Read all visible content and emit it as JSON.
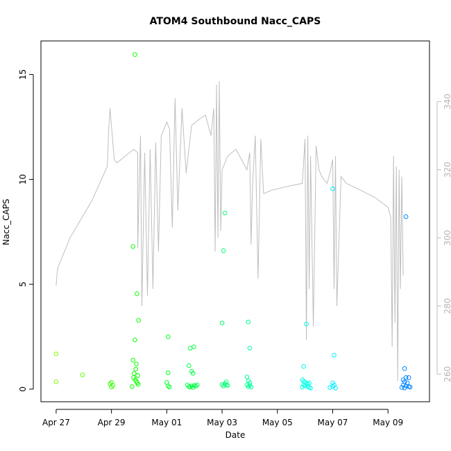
{
  "chart_data": {
    "type": "scatter",
    "title": "ATOM4 Southbound Nacc_CAPS",
    "xlabel": "Date",
    "ylabel": "Nacc_CAPS",
    "x_unit": "days since Apr 27",
    "xlim": [
      -0.55,
      13.5
    ],
    "ylim": [
      -0.6,
      16.6
    ],
    "x_ticks": [
      {
        "value": 0,
        "label": "Apr 27"
      },
      {
        "value": 2,
        "label": "Apr 29"
      },
      {
        "value": 4,
        "label": "May 01"
      },
      {
        "value": 6,
        "label": "May 03"
      },
      {
        "value": 8,
        "label": "May 05"
      },
      {
        "value": 10,
        "label": "May 07"
      },
      {
        "value": 12,
        "label": "May 09"
      }
    ],
    "y_ticks": [
      0,
      5,
      10,
      15
    ],
    "right_axis": {
      "ylim": [
        251.9,
        357.8
      ],
      "ticks": [
        260,
        280,
        300,
        320,
        340
      ],
      "line_color": "#bebebe",
      "line_points": [
        [
          0.0,
          286
        ],
        [
          0.05,
          291
        ],
        [
          0.5,
          300
        ],
        [
          1.3,
          311
        ],
        [
          1.85,
          321
        ],
        [
          1.9,
          332
        ],
        [
          1.95,
          338
        ],
        [
          2.1,
          323
        ],
        [
          2.2,
          322
        ],
        [
          2.5,
          324
        ],
        [
          2.8,
          326
        ],
        [
          2.95,
          325
        ],
        [
          2.95,
          297
        ],
        [
          3.05,
          330
        ],
        [
          3.1,
          280
        ],
        [
          3.2,
          325
        ],
        [
          3.3,
          283
        ],
        [
          3.4,
          326
        ],
        [
          3.5,
          285
        ],
        [
          3.6,
          328
        ],
        [
          3.7,
          296
        ],
        [
          3.8,
          330
        ],
        [
          4.0,
          334
        ],
        [
          4.1,
          332
        ],
        [
          4.2,
          303
        ],
        [
          4.3,
          341
        ],
        [
          4.4,
          308
        ],
        [
          4.55,
          338
        ],
        [
          4.7,
          319
        ],
        [
          4.9,
          333
        ],
        [
          5.2,
          335
        ],
        [
          5.4,
          336
        ],
        [
          5.6,
          330
        ],
        [
          5.7,
          338
        ],
        [
          5.75,
          296
        ],
        [
          5.8,
          345
        ],
        [
          5.85,
          300
        ],
        [
          5.9,
          346
        ],
        [
          5.95,
          302
        ],
        [
          6.0,
          320
        ],
        [
          6.1,
          322
        ],
        [
          6.2,
          324
        ],
        [
          6.5,
          326
        ],
        [
          6.9,
          320
        ],
        [
          7.0,
          325
        ],
        [
          7.05,
          298
        ],
        [
          7.1,
          315
        ],
        [
          7.2,
          330
        ],
        [
          7.3,
          288
        ],
        [
          7.4,
          329
        ],
        [
          7.5,
          313
        ],
        [
          7.8,
          314
        ],
        [
          8.3,
          315
        ],
        [
          8.9,
          316
        ],
        [
          9.0,
          329
        ],
        [
          9.05,
          270
        ],
        [
          9.1,
          330
        ],
        [
          9.15,
          285
        ],
        [
          9.2,
          324
        ],
        [
          9.3,
          274
        ],
        [
          9.4,
          327
        ],
        [
          9.5,
          320
        ],
        [
          9.6,
          318
        ],
        [
          9.7,
          317
        ],
        [
          9.8,
          316
        ],
        [
          9.9,
          319
        ],
        [
          10.0,
          323
        ],
        [
          10.05,
          285
        ],
        [
          10.1,
          324
        ],
        [
          10.15,
          280
        ],
        [
          10.3,
          318
        ],
        [
          10.5,
          316
        ],
        [
          11.0,
          314
        ],
        [
          11.5,
          312
        ],
        [
          12.0,
          309
        ],
        [
          12.1,
          306
        ],
        [
          12.15,
          268
        ],
        [
          12.2,
          324
        ],
        [
          12.25,
          275
        ],
        [
          12.3,
          321
        ],
        [
          12.35,
          258
        ],
        [
          12.4,
          320
        ],
        [
          12.45,
          285
        ],
        [
          12.5,
          318
        ],
        [
          12.55,
          289
        ]
      ]
    },
    "series": [
      {
        "name": "Nacc_CAPS",
        "marker": "open-circle",
        "color_scale": "rainbow by date (green to blue)",
        "points": [
          [
            0.0,
            1.68
          ],
          [
            0.0,
            0.35
          ],
          [
            0.95,
            0.68
          ],
          [
            1.95,
            0.25
          ],
          [
            2.0,
            0.32
          ],
          [
            2.05,
            0.18
          ],
          [
            2.0,
            0.1
          ],
          [
            2.85,
            15.95
          ],
          [
            2.78,
            6.8
          ],
          [
            2.92,
            4.55
          ],
          [
            2.98,
            3.28
          ],
          [
            2.85,
            2.35
          ],
          [
            2.78,
            1.38
          ],
          [
            2.9,
            1.2
          ],
          [
            2.88,
            0.95
          ],
          [
            2.82,
            0.75
          ],
          [
            2.95,
            0.65
          ],
          [
            2.8,
            0.55
          ],
          [
            2.86,
            0.45
          ],
          [
            2.9,
            0.38
          ],
          [
            2.93,
            0.3
          ],
          [
            2.97,
            0.22
          ],
          [
            2.75,
            0.12
          ],
          [
            4.05,
            2.5
          ],
          [
            4.05,
            0.78
          ],
          [
            4.0,
            0.32
          ],
          [
            4.05,
            0.15
          ],
          [
            4.1,
            0.1
          ],
          [
            4.8,
            1.12
          ],
          [
            4.85,
            1.95
          ],
          [
            4.98,
            2.02
          ],
          [
            4.9,
            0.85
          ],
          [
            4.95,
            0.75
          ],
          [
            4.75,
            0.2
          ],
          [
            4.8,
            0.12
          ],
          [
            4.85,
            0.1
          ],
          [
            4.9,
            0.16
          ],
          [
            4.95,
            0.08
          ],
          [
            5.0,
            0.18
          ],
          [
            5.05,
            0.14
          ],
          [
            5.1,
            0.2
          ],
          [
            6.0,
            3.15
          ],
          [
            6.1,
            8.4
          ],
          [
            6.05,
            6.6
          ],
          [
            6.15,
            0.35
          ],
          [
            6.0,
            0.22
          ],
          [
            6.05,
            0.15
          ],
          [
            6.1,
            0.25
          ],
          [
            6.15,
            0.2
          ],
          [
            6.2,
            0.18
          ],
          [
            6.95,
            3.2
          ],
          [
            7.0,
            1.95
          ],
          [
            6.9,
            0.58
          ],
          [
            6.95,
            0.4
          ],
          [
            7.0,
            0.3
          ],
          [
            6.9,
            0.2
          ],
          [
            6.95,
            0.12
          ],
          [
            7.0,
            0.18
          ],
          [
            7.05,
            0.1
          ],
          [
            10.0,
            9.55
          ],
          [
            10.05,
            1.62
          ],
          [
            10.0,
            0.3
          ],
          [
            10.05,
            0.2
          ],
          [
            10.0,
            0.12
          ],
          [
            9.9,
            0.08
          ],
          [
            10.1,
            0.05
          ],
          [
            9.05,
            3.1
          ],
          [
            8.95,
            1.08
          ],
          [
            8.9,
            0.45
          ],
          [
            8.95,
            0.38
          ],
          [
            9.0,
            0.32
          ],
          [
            9.05,
            0.28
          ],
          [
            9.1,
            0.25
          ],
          [
            9.15,
            0.3
          ],
          [
            8.95,
            0.2
          ],
          [
            9.0,
            0.15
          ],
          [
            9.1,
            0.12
          ],
          [
            9.15,
            0.08
          ],
          [
            9.2,
            0.05
          ],
          [
            8.9,
            0.1
          ],
          [
            12.65,
            8.22
          ],
          [
            12.6,
            0.98
          ],
          [
            12.55,
            0.45
          ],
          [
            12.65,
            0.55
          ],
          [
            12.75,
            0.55
          ],
          [
            12.6,
            0.35
          ],
          [
            12.7,
            0.3
          ],
          [
            12.55,
            0.2
          ],
          [
            12.65,
            0.15
          ],
          [
            12.75,
            0.12
          ],
          [
            12.8,
            0.1
          ],
          [
            12.5,
            0.08
          ],
          [
            12.6,
            0.05
          ]
        ]
      }
    ]
  }
}
